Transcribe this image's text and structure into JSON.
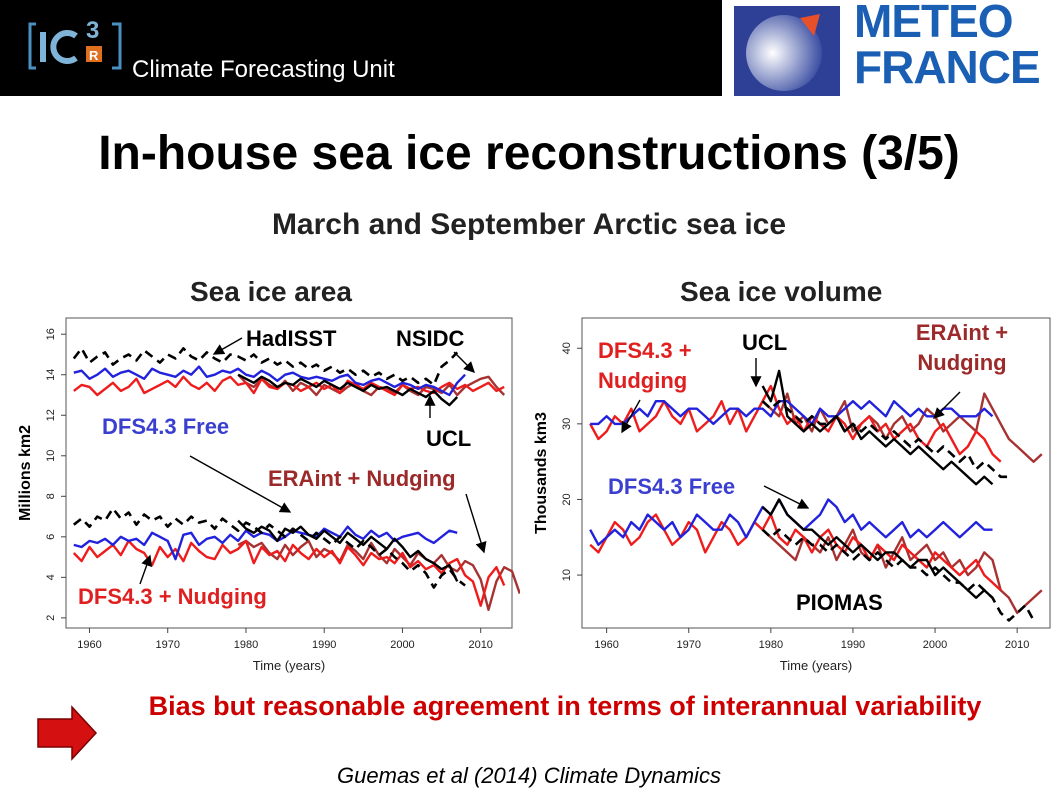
{
  "header": {
    "logo_text": "IC3",
    "logo_superscript": "3",
    "logo_sub": "R",
    "unit": "Climate Forecasting Unit",
    "partner_logo_line1": "METEO",
    "partner_logo_line2": "FRANCE"
  },
  "slide": {
    "title": "In-house sea ice reconstructions (3/5)",
    "subtitle": "March and September Arctic sea ice",
    "conclusion": "Bias but reasonable agreement in terms of interannual variability",
    "citation": "Guemas et al (2014) Climate Dynamics"
  },
  "colors": {
    "dfs_free": "#2222dd",
    "dfs_nudging": "#ee1c1c",
    "eraint_nudging": "#a83232",
    "ucl": "#000000",
    "obs": "#000000",
    "arrow": "#cc0000"
  },
  "chart_data": [
    {
      "type": "line",
      "title": "Sea ice area",
      "xlabel": "Time (years)",
      "ylabel": "Millions km2",
      "xlim": [
        1957,
        2014
      ],
      "ylim": [
        1.5,
        16.8
      ],
      "xticks": [
        1960,
        1970,
        1980,
        1990,
        2000,
        2010
      ],
      "yticks": [
        2,
        4,
        6,
        8,
        10,
        12,
        14,
        16
      ],
      "grid": false,
      "annotations": [
        "HadISST",
        "NSIDC",
        "UCL",
        "DFS4.3 Free",
        "ERAint + Nudging",
        "DFS4.3 + Nudging"
      ],
      "series": [
        {
          "name": "DFS4.3 Free",
          "season": "March",
          "x_start": 1958,
          "values": [
            14.1,
            14.2,
            13.8,
            14.0,
            14.3,
            13.9,
            14.1,
            14.2,
            14.0,
            13.8,
            14.3,
            14.1,
            14.0,
            13.9,
            14.2,
            14.0,
            14.4,
            13.9,
            14.0,
            14.2,
            14.1,
            14.3,
            14.0,
            13.9,
            14.2,
            14.0,
            13.7,
            14.0,
            14.1,
            13.9,
            13.8,
            13.9,
            13.8,
            13.7,
            13.9,
            14.0,
            13.6,
            13.5,
            13.7,
            13.8,
            13.6,
            13.4,
            13.6,
            13.5,
            13.3,
            13.5,
            13.4,
            13.2,
            13.0,
            13.6,
            14.0
          ]
        },
        {
          "name": "DFS4.3 Free",
          "season": "September",
          "x_start": 1958,
          "values": [
            5.6,
            5.5,
            5.8,
            5.7,
            5.9,
            5.6,
            6.0,
            5.8,
            5.9,
            5.6,
            6.2,
            6.0,
            5.8,
            4.9,
            6.1,
            6.2,
            5.6,
            5.9,
            6.0,
            5.7,
            6.1,
            5.8,
            6.3,
            6.0,
            6.2,
            6.1,
            5.8,
            6.0,
            6.3,
            6.2,
            6.1,
            6.0,
            6.4,
            6.2,
            6.0,
            6.5,
            6.1,
            5.9,
            6.3,
            6.0,
            6.2,
            5.8,
            6.0,
            6.1,
            6.2,
            5.9,
            5.7,
            6.0,
            6.3,
            6.2
          ]
        },
        {
          "name": "DFS4.3 + Nudging",
          "season": "March",
          "x_start": 1958,
          "values": [
            13.2,
            13.5,
            13.4,
            13.0,
            13.3,
            13.6,
            13.2,
            13.4,
            13.8,
            13.1,
            13.3,
            13.5,
            13.7,
            13.4,
            13.9,
            13.5,
            13.3,
            13.6,
            13.2,
            13.7,
            13.9,
            13.5,
            13.6,
            13.1,
            13.8,
            13.4,
            13.3,
            13.6,
            13.5,
            13.2,
            13.4,
            13.6,
            13.3,
            13.5,
            13.1,
            13.7,
            13.5,
            13.3,
            13.6,
            13.4,
            13.2,
            13.0,
            13.5,
            13.3,
            13.4,
            13.2,
            13.1,
            13.4,
            13.6,
            13.3,
            13.5,
            13.2,
            13.4,
            13.6,
            13.2,
            13.4
          ]
        },
        {
          "name": "DFS4.3 + Nudging",
          "season": "September",
          "x_start": 1958,
          "values": [
            5.2,
            4.8,
            5.5,
            5.0,
            5.3,
            5.6,
            5.1,
            5.8,
            5.4,
            5.2,
            4.6,
            5.5,
            5.0,
            5.4,
            4.8,
            5.7,
            5.3,
            5.0,
            4.9,
            5.6,
            5.2,
            5.4,
            5.8,
            4.7,
            5.5,
            5.1,
            5.3,
            4.8,
            5.6,
            5.2,
            4.9,
            5.4,
            5.0,
            5.3,
            4.7,
            5.5,
            5.1,
            4.6,
            5.2,
            4.9,
            5.0,
            4.7,
            5.2,
            4.5,
            4.8,
            4.4,
            4.6,
            4.2,
            4.7,
            4.9,
            4.1,
            3.8,
            2.6,
            4.0,
            4.5,
            3.6
          ]
        },
        {
          "name": "ERAint + Nudging",
          "season": "March",
          "x_start": 1979,
          "values": [
            14.0,
            13.6,
            13.4,
            13.8,
            13.5,
            13.3,
            13.7,
            13.2,
            13.6,
            13.4,
            13.0,
            13.5,
            13.3,
            13.1,
            13.4,
            13.6,
            13.2,
            13.0,
            13.4,
            13.3,
            13.1,
            13.5,
            13.2,
            13.0,
            13.4,
            13.3,
            13.1,
            13.5,
            13.0,
            13.4,
            13.6,
            13.8,
            13.9,
            13.4,
            13.0
          ]
        },
        {
          "name": "ERAint + Nudging",
          "season": "September",
          "x_start": 1979,
          "values": [
            5.6,
            5.8,
            5.5,
            5.7,
            5.2,
            4.9,
            5.6,
            5.1,
            5.5,
            5.8,
            5.0,
            5.4,
            5.2,
            4.8,
            5.6,
            5.3,
            4.9,
            5.7,
            5.1,
            4.7,
            5.4,
            5.0,
            4.6,
            5.2,
            4.9,
            4.7,
            5.1,
            4.5,
            4.3,
            4.8,
            4.6,
            3.9,
            2.4,
            3.8,
            4.5,
            4.3,
            3.2
          ]
        },
        {
          "name": "UCL",
          "season": "March",
          "x_start": 1979,
          "values": [
            14.0,
            13.8,
            13.6,
            13.9,
            13.7,
            13.4,
            13.6,
            13.5,
            13.8,
            13.6,
            13.4,
            13.7,
            13.5,
            13.3,
            13.6,
            13.4,
            13.2,
            13.5,
            13.3,
            13.4,
            13.2,
            13.0,
            13.3,
            13.1,
            12.9,
            13.2,
            12.8,
            12.5,
            12.9
          ]
        },
        {
          "name": "UCL",
          "season": "September",
          "x_start": 1979,
          "values": [
            6.8,
            6.4,
            6.2,
            6.5,
            6.3,
            5.8,
            6.4,
            6.2,
            6.5,
            6.1,
            5.9,
            6.3,
            6.0,
            5.7,
            6.2,
            5.9,
            5.6,
            6.0,
            5.7,
            5.4,
            5.9,
            5.5,
            5.0,
            5.3,
            4.9,
            4.7,
            4.4,
            4.6,
            3.8
          ]
        },
        {
          "name": "HadISST",
          "season": "March",
          "x_start": 1958,
          "values": [
            14.8,
            15.3,
            14.6,
            14.9,
            15.1,
            14.5,
            14.8,
            15.0,
            14.7,
            15.2,
            14.9,
            14.6,
            15.0,
            14.8,
            15.3,
            14.9,
            14.7,
            15.1,
            14.8,
            14.6,
            15.0,
            14.9,
            14.7,
            15.0,
            14.6,
            14.8,
            14.5,
            14.7,
            14.4,
            14.6,
            14.3,
            14.5,
            14.2,
            14.4,
            14.1,
            14.3,
            14.0,
            14.2,
            13.9,
            14.1,
            13.8,
            14.0,
            13.7,
            13.9,
            13.6,
            13.8,
            13.5,
            14.4,
            14.7,
            15.1
          ]
        },
        {
          "name": "HadISST",
          "season": "September",
          "x_start": 1958,
          "values": [
            6.6,
            6.9,
            6.5,
            7.0,
            6.8,
            7.4,
            6.9,
            7.2,
            6.6,
            7.1,
            6.8,
            7.0,
            6.5,
            6.9,
            6.6,
            7.0,
            6.7,
            6.8,
            6.4,
            6.9,
            6.6,
            6.3,
            6.7,
            6.5,
            6.2,
            6.6,
            6.3,
            6.0,
            6.4,
            6.1,
            5.8,
            6.2,
            5.9,
            5.6,
            6.0,
            5.7,
            5.4,
            5.8,
            5.5,
            5.1,
            5.4,
            5.0,
            4.7,
            4.3,
            4.6,
            4.2,
            3.5,
            4.1,
            4.4,
            3.9,
            3.6
          ]
        }
      ]
    },
    {
      "type": "line",
      "title": "Sea ice volume",
      "xlabel": "Time (years)",
      "ylabel": "Thousands km3",
      "xlim": [
        1957,
        2014
      ],
      "ylim": [
        3,
        44
      ],
      "xticks": [
        1960,
        1970,
        1980,
        1990,
        2000,
        2010
      ],
      "yticks": [
        10,
        20,
        30,
        40
      ],
      "grid": false,
      "annotations": [
        "DFS4.3 + Nudging",
        "UCL",
        "ERAint + Nudging",
        "DFS4.3 Free",
        "PIOMAS"
      ],
      "series": [
        {
          "name": "DFS4.3 Free",
          "season": "March",
          "x_start": 1958,
          "values": [
            30,
            30,
            31,
            30,
            30,
            31,
            32,
            31,
            33,
            33,
            32,
            31,
            32,
            32,
            31,
            30,
            31,
            32,
            32,
            31,
            32,
            32,
            31,
            33,
            33,
            32,
            31,
            30,
            32,
            31,
            31,
            32,
            33,
            32,
            33,
            32,
            31,
            33,
            32,
            31,
            32,
            31,
            31,
            32,
            32,
            31,
            31,
            31,
            32,
            31
          ]
        },
        {
          "name": "DFS4.3 Free",
          "season": "September",
          "x_start": 1958,
          "values": [
            16,
            14,
            15,
            16,
            15,
            17,
            16,
            18,
            17,
            16,
            17,
            15,
            16,
            18,
            17,
            16,
            16,
            18,
            17,
            15,
            17,
            19,
            18,
            20,
            18,
            17,
            16,
            17,
            18,
            20,
            19,
            17,
            18,
            16,
            17,
            16,
            15,
            16,
            17,
            15,
            16,
            15,
            16,
            17,
            16,
            15,
            16,
            17,
            16,
            16
          ]
        },
        {
          "name": "DFS4.3 + Nudging",
          "season": "March",
          "x_start": 1958,
          "values": [
            30,
            28,
            29,
            31,
            30,
            32,
            29,
            30,
            31,
            33,
            31,
            30,
            32,
            29,
            30,
            31,
            33,
            30,
            32,
            29,
            31,
            33,
            35,
            32,
            30,
            31,
            29,
            31,
            30,
            29,
            31,
            30,
            28,
            30,
            31,
            29,
            30,
            28,
            29,
            30,
            28,
            27,
            29,
            30,
            28,
            26,
            27,
            29,
            28,
            26,
            25
          ]
        },
        {
          "name": "DFS4.3 + Nudging",
          "season": "September",
          "x_start": 1958,
          "values": [
            14,
            13,
            15,
            17,
            16,
            14,
            15,
            17,
            18,
            16,
            14,
            15,
            17,
            16,
            13,
            15,
            17,
            16,
            14,
            15,
            17,
            16,
            18,
            15,
            14,
            16,
            15,
            13,
            15,
            16,
            14,
            13,
            15,
            14,
            12,
            14,
            13,
            12,
            14,
            13,
            12,
            11,
            13,
            12,
            11,
            10,
            11,
            12,
            10,
            9,
            8
          ]
        },
        {
          "name": "ERAint + Nudging",
          "season": "March",
          "x_start": 1979,
          "values": [
            33,
            32,
            31,
            34,
            30,
            31,
            29,
            32,
            30,
            31,
            33,
            29,
            30,
            31,
            30,
            28,
            30,
            31,
            29,
            30,
            32,
            31,
            29,
            30,
            31,
            30,
            29,
            34,
            32,
            30,
            28,
            27,
            26,
            25,
            26
          ]
        },
        {
          "name": "ERAint + Nudging",
          "season": "September",
          "x_start": 1979,
          "values": [
            16,
            15,
            14,
            13,
            12,
            15,
            14,
            13,
            15,
            12,
            14,
            16,
            13,
            12,
            14,
            11,
            13,
            15,
            12,
            13,
            14,
            12,
            13,
            11,
            12,
            10,
            11,
            13,
            12,
            8,
            7,
            5,
            6,
            7,
            8
          ]
        },
        {
          "name": "UCL",
          "season": "March",
          "x_start": 1979,
          "values": [
            35,
            33,
            37,
            31,
            30,
            29,
            30,
            29,
            30,
            31,
            29,
            30,
            28,
            29,
            28,
            27,
            28,
            27,
            26,
            27,
            26,
            25,
            24,
            25,
            24,
            23,
            22,
            23,
            22
          ]
        },
        {
          "name": "UCL",
          "season": "September",
          "x_start": 1979,
          "values": [
            19,
            18,
            20,
            18,
            17,
            16,
            16,
            15,
            14,
            15,
            14,
            13,
            14,
            13,
            12,
            13,
            13,
            12,
            11,
            12,
            12,
            10,
            11,
            10,
            9,
            8,
            7,
            8,
            7
          ]
        },
        {
          "name": "PIOMAS",
          "season": "March",
          "x_start": 1979,
          "values": [
            33,
            32,
            33,
            32,
            31,
            30,
            31,
            30,
            30,
            31,
            29,
            30,
            29,
            30,
            29,
            28,
            29,
            28,
            27,
            28,
            27,
            26,
            27,
            26,
            25,
            26,
            24,
            25,
            24,
            23,
            23
          ]
        },
        {
          "name": "PIOMAS",
          "season": "September",
          "x_start": 1979,
          "values": [
            16,
            15,
            16,
            15,
            14,
            15,
            14,
            14,
            13,
            14,
            13,
            12,
            13,
            12,
            13,
            12,
            11,
            12,
            11,
            11,
            10,
            11,
            10,
            9,
            9,
            8,
            9,
            8,
            7,
            5,
            4,
            5,
            6,
            4
          ]
        }
      ]
    }
  ]
}
